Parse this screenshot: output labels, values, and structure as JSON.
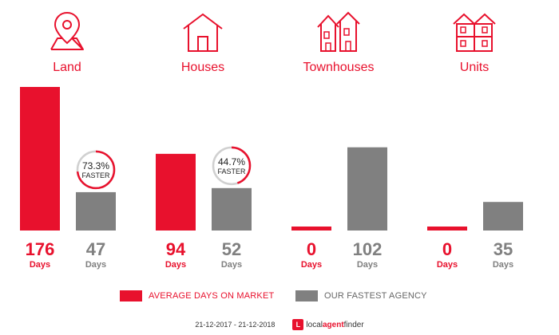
{
  "categories": [
    {
      "name": "Land",
      "icon": "location-pin-map-icon"
    },
    {
      "name": "Houses",
      "icon": "house-icon"
    },
    {
      "name": "Townhouses",
      "icon": "townhouses-icon"
    },
    {
      "name": "Units",
      "icon": "units-building-icon"
    }
  ],
  "colors": {
    "market": "#e8112d",
    "agency": "#808080",
    "ring_track": "#d0d0d0"
  },
  "chart_data": {
    "type": "bar",
    "categories": [
      "Land",
      "Houses",
      "Townhouses",
      "Units"
    ],
    "series": [
      {
        "name": "AVERAGE DAYS ON MARKET",
        "values": [
          176,
          94,
          0,
          0
        ]
      },
      {
        "name": "OUR FASTEST AGENCY",
        "values": [
          47,
          52,
          102,
          35
        ]
      }
    ],
    "value_unit": "Days",
    "value_labels": {
      "market": [
        "176",
        "94",
        "0",
        "0"
      ],
      "agency": [
        "47",
        "52",
        "102",
        "35"
      ]
    },
    "faster_badges": [
      {
        "category": "Land",
        "percent_text": "73.3%",
        "label": "FASTER",
        "fraction": 0.733
      },
      {
        "category": "Houses",
        "percent_text": "44.7%",
        "label": "FASTER",
        "fraction": 0.447
      }
    ],
    "ylim": [
      0,
      176
    ],
    "legend": [
      "AVERAGE DAYS ON MARKET",
      "OUR FASTEST AGENCY"
    ],
    "legend_position": "bottom"
  },
  "legend": {
    "market_label": "AVERAGE DAYS ON MARKET",
    "agency_label": "OUR FASTEST AGENCY"
  },
  "footer": {
    "date_range": "21-12-2017 - 21-12-2018",
    "logo_mark": "L",
    "logo_local": "local",
    "logo_agent": "agent",
    "logo_finder": "finder"
  }
}
